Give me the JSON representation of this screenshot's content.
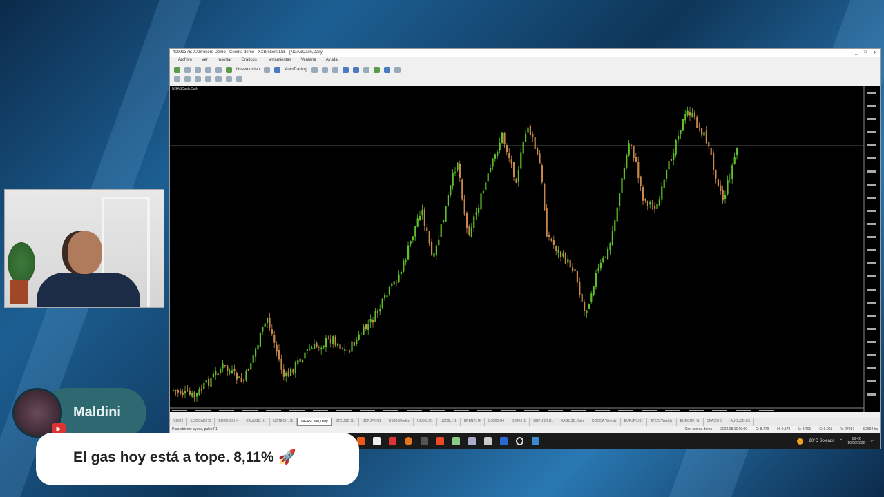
{
  "window": {
    "title": "40999375: XXBrokers-Demo - Cuenta demo - XXBrokers Ltd. - [NGASCash,Daily]",
    "controls": [
      "_",
      "□",
      "✕"
    ]
  },
  "menu": [
    "Archivo",
    "Ver",
    "Insertar",
    "Gráficos",
    "Herramientas",
    "Ventana",
    "Ayuda"
  ],
  "toolbar": {
    "new_order": "Nuevo orden",
    "auto_trading": "AutoTrading"
  },
  "chart": {
    "symbol_label": "NGASCash,Daily",
    "up_color": "#5fc02a",
    "down_color": "#c8884a",
    "background": "#000000",
    "timeframe": "Daily"
  },
  "tabs": [
    "Y2022",
    "USDCAD,H1",
    "EURUSD,H4",
    "XAUUSD,H1",
    "USTECH,H1",
    "NGASCash,Daily",
    "BTCUSD,H1",
    "GBPJPY,H1",
    "US30,Weekly",
    "UKOIL,H1",
    "USOIL,H1",
    "BRENT,H4",
    "US500,H4",
    "DE40,H1",
    "GBPUSD,H1",
    "XAGUSD,Daily",
    "COCOA,Weekly",
    "EURJPY,H1",
    "JP225,Weekly",
    "EURCHF,H1",
    "SPA35,H1",
    "AUDUSD,H1"
  ],
  "tabs_active": 5,
  "status": {
    "help": "Para obtener ayuda, pulse F1",
    "profile": "Con cuenta demo",
    "fields": [
      "2022.08.16 00:00",
      "O: 8.779",
      "H: 9.178",
      "L: 8.701",
      "C: 9.003",
      "V: 27087"
    ],
    "connection": "8/2894 kb"
  },
  "taskbar": {
    "weather": "20°C Soleado",
    "time": "19:42",
    "date": "16/08/2022"
  },
  "chat": {
    "username": "Maldini",
    "message": "El gas hoy está a tope. 8,11% 🚀"
  }
}
